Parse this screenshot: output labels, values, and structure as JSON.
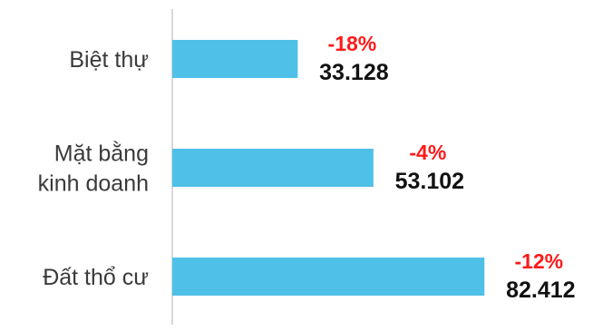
{
  "chart_data": {
    "type": "bar",
    "orientation": "horizontal",
    "categories": [
      [
        "Biệt thự"
      ],
      [
        "Mặt bằng",
        "kinh doanh"
      ],
      [
        "Đất thổ cư"
      ]
    ],
    "values": [
      33128,
      53102,
      82412
    ],
    "value_labels": [
      "33.128",
      "53.102",
      "82.412"
    ],
    "change_labels": [
      "-18%",
      "-4%",
      "-12%"
    ],
    "title": "",
    "xlabel": "",
    "ylabel": "",
    "xlim": [
      0,
      90000
    ],
    "grid": false,
    "legend": "none",
    "colors": {
      "bar": "#4fc0e8",
      "change": "#ff1a1a",
      "value": "#111111",
      "axis": "#cccccc",
      "category": "#3a3a3a"
    }
  }
}
